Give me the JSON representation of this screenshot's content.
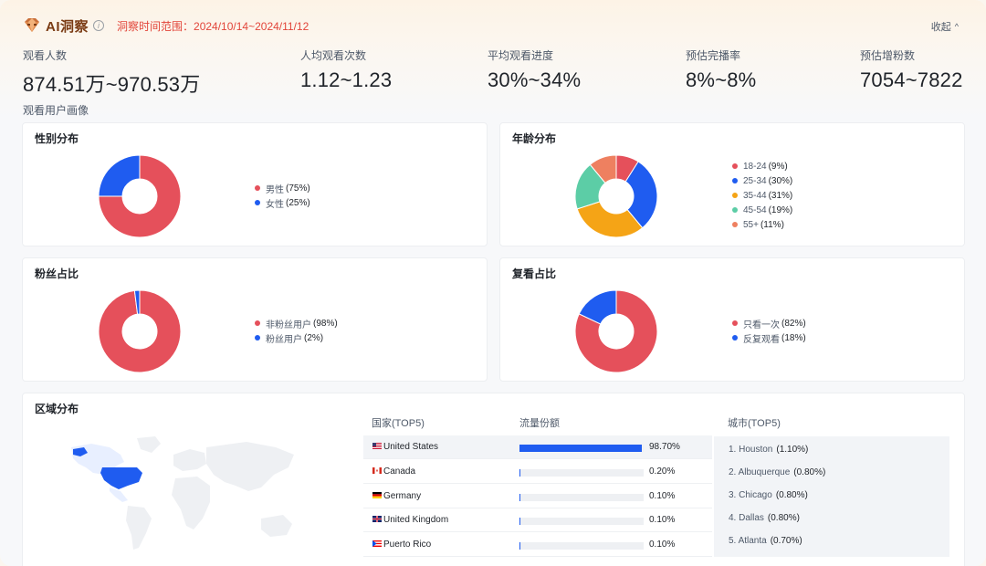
{
  "header": {
    "brand": "AI洞察",
    "range_label": "洞察时间范围：",
    "range_value": "2024/10/14~2024/11/12",
    "collapse_label": "收起"
  },
  "stats": [
    {
      "label": "观看人数",
      "value": "874.51万~970.53万"
    },
    {
      "label": "人均观看次数",
      "value": "1.12~1.23"
    },
    {
      "label": "平均观看进度",
      "value": "30%~34%"
    },
    {
      "label": "预估完播率",
      "value": "8%~8%"
    },
    {
      "label": "预估增粉数",
      "value": "7054~7822"
    }
  ],
  "section_title": "观看用户画像",
  "colors": {
    "red": "#e5505b",
    "blue": "#1f5cf0",
    "orange": "#f5a416",
    "green": "#5ccda6",
    "salmon": "#ee8060"
  },
  "cards": {
    "gender": {
      "title": "性别分布",
      "items": [
        {
          "label": "男性",
          "pct": "(75%)",
          "value": 75,
          "color": "#e5505b"
        },
        {
          "label": "女性",
          "pct": "(25%)",
          "value": 25,
          "color": "#1f5cf0"
        }
      ]
    },
    "age": {
      "title": "年龄分布",
      "items": [
        {
          "label": "18-24",
          "pct": "(9%)",
          "value": 9,
          "color": "#e5505b"
        },
        {
          "label": "25-34",
          "pct": "(30%)",
          "value": 30,
          "color": "#1f5cf0"
        },
        {
          "label": "35-44",
          "pct": "(31%)",
          "value": 31,
          "color": "#f5a416"
        },
        {
          "label": "45-54",
          "pct": "(19%)",
          "value": 19,
          "color": "#5ccda6"
        },
        {
          "label": "55+",
          "pct": "(11%)",
          "value": 11,
          "color": "#ee8060"
        }
      ]
    },
    "fans": {
      "title": "粉丝占比",
      "items": [
        {
          "label": "非粉丝用户",
          "pct": "(98%)",
          "value": 98,
          "color": "#e5505b"
        },
        {
          "label": "粉丝用户",
          "pct": "(2%)",
          "value": 2,
          "color": "#1f5cf0"
        }
      ]
    },
    "repeat": {
      "title": "复看占比",
      "items": [
        {
          "label": "只看一次",
          "pct": "(82%)",
          "value": 82,
          "color": "#e5505b"
        },
        {
          "label": "反复观看",
          "pct": "(18%)",
          "value": 18,
          "color": "#1f5cf0"
        }
      ]
    }
  },
  "region": {
    "title": "区域分布",
    "col_country": "国家(TOP5)",
    "col_share": "流量份额",
    "col_city": "城市(TOP5)",
    "countries": [
      {
        "name": "United States",
        "share": "98.70%",
        "value": 98.7,
        "flag": "us-flag-icon"
      },
      {
        "name": "Canada",
        "share": "0.20%",
        "value": 0.2,
        "flag": "ca-flag-icon"
      },
      {
        "name": "Germany",
        "share": "0.10%",
        "value": 0.1,
        "flag": "de-flag-icon"
      },
      {
        "name": "United Kingdom",
        "share": "0.10%",
        "value": 0.1,
        "flag": "gb-flag-icon"
      },
      {
        "name": "Puerto Rico",
        "share": "0.10%",
        "value": 0.1,
        "flag": "pr-flag-icon"
      }
    ],
    "cities": [
      {
        "name": "1. Houston",
        "share": "(1.10%)"
      },
      {
        "name": "2. Albuquerque",
        "share": "(0.80%)"
      },
      {
        "name": "3. Chicago",
        "share": "(0.80%)"
      },
      {
        "name": "4. Dallas",
        "share": "(0.80%)"
      },
      {
        "name": "5. Atlanta",
        "share": "(0.70%)"
      }
    ]
  }
}
